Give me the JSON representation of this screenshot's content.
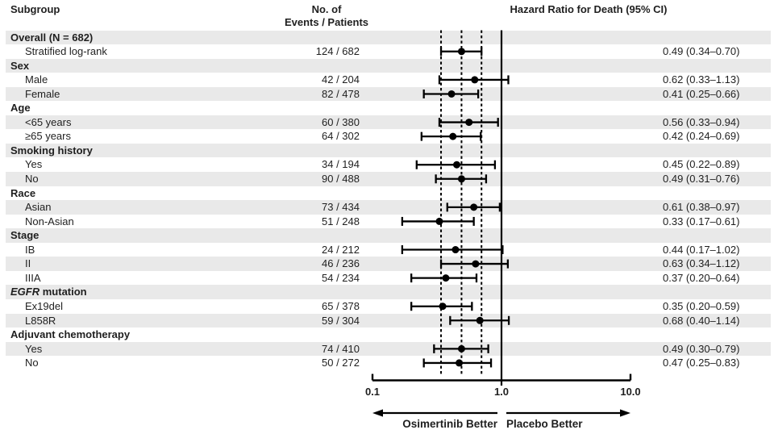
{
  "header": {
    "subgroup": "Subgroup",
    "events_line1": "No. of",
    "events_line2": "Events / Patients",
    "hazard": "Hazard Ratio for Death (95% CI)"
  },
  "axis": {
    "tick_labels": [
      "0.1",
      "1.0",
      "10.0"
    ],
    "tick_values": [
      0.1,
      1.0,
      10.0
    ],
    "left_label": "Osimertinib Better",
    "right_label": "Placebo Better"
  },
  "colors": {
    "stripe": "#e9e9e9",
    "text": "#1f1f1f",
    "line": "#000000"
  },
  "chart_data": {
    "type": "scatter",
    "variant": "forest-plot",
    "title": "Hazard Ratio for Death (95% CI)",
    "x_scale": "log10",
    "x_range": [
      0.1,
      10.0
    ],
    "x_ticks": [
      0.1,
      1.0,
      10.0
    ],
    "x_tick_labels": [
      "0.1",
      "1.0",
      "10.0"
    ],
    "reference_line": 1.0,
    "dashed_guides": [
      0.34,
      0.49,
      0.7
    ],
    "direction_labels": {
      "left": "Osimertinib Better",
      "right": "Placebo Better"
    },
    "columns": {
      "subgroup": "Subgroup",
      "events": "No. of Events / Patients",
      "hazard": "Hazard Ratio for Death (95% CI)"
    },
    "rows": [
      {
        "kind": "group",
        "label": "Overall (N = 682)"
      },
      {
        "kind": "item",
        "label": "Stratified log-rank",
        "events": "124 / 682",
        "hr": 0.49,
        "ci_low": 0.34,
        "ci_high": 0.7,
        "hr_text": "0.49 (0.34–0.70)"
      },
      {
        "kind": "group",
        "label": "Sex"
      },
      {
        "kind": "item",
        "label": "Male",
        "events": "42 / 204",
        "hr": 0.62,
        "ci_low": 0.33,
        "ci_high": 1.13,
        "hr_text": "0.62 (0.33–1.13)"
      },
      {
        "kind": "item",
        "label": "Female",
        "events": "82 / 478",
        "hr": 0.41,
        "ci_low": 0.25,
        "ci_high": 0.66,
        "hr_text": "0.41 (0.25–0.66)"
      },
      {
        "kind": "group",
        "label": "Age"
      },
      {
        "kind": "item",
        "label": "<65 years",
        "events": "60 / 380",
        "hr": 0.56,
        "ci_low": 0.33,
        "ci_high": 0.94,
        "hr_text": "0.56 (0.33–0.94)"
      },
      {
        "kind": "item",
        "label": "≥65 years",
        "events": "64 / 302",
        "hr": 0.42,
        "ci_low": 0.24,
        "ci_high": 0.69,
        "hr_text": "0.42 (0.24–0.69)"
      },
      {
        "kind": "group",
        "label": "Smoking history"
      },
      {
        "kind": "item",
        "label": "Yes",
        "events": "34 / 194",
        "hr": 0.45,
        "ci_low": 0.22,
        "ci_high": 0.89,
        "hr_text": "0.45 (0.22–0.89)"
      },
      {
        "kind": "item",
        "label": "No",
        "events": "90 / 488",
        "hr": 0.49,
        "ci_low": 0.31,
        "ci_high": 0.76,
        "hr_text": "0.49 (0.31–0.76)"
      },
      {
        "kind": "group",
        "label": "Race"
      },
      {
        "kind": "item",
        "label": "Asian",
        "events": "73 / 434",
        "hr": 0.61,
        "ci_low": 0.38,
        "ci_high": 0.97,
        "hr_text": "0.61 (0.38–0.97)"
      },
      {
        "kind": "item",
        "label": "Non-Asian",
        "events": "51 / 248",
        "hr": 0.33,
        "ci_low": 0.17,
        "ci_high": 0.61,
        "hr_text": "0.33 (0.17–0.61)"
      },
      {
        "kind": "group",
        "label": "Stage"
      },
      {
        "kind": "item",
        "label": "IB",
        "events": "24 / 212",
        "hr": 0.44,
        "ci_low": 0.17,
        "ci_high": 1.02,
        "hr_text": "0.44 (0.17–1.02)"
      },
      {
        "kind": "item",
        "label": "II",
        "events": "46 / 236",
        "hr": 0.63,
        "ci_low": 0.34,
        "ci_high": 1.12,
        "hr_text": "0.63 (0.34–1.12)"
      },
      {
        "kind": "item",
        "label": "IIIA",
        "events": "54 / 234",
        "hr": 0.37,
        "ci_low": 0.2,
        "ci_high": 0.64,
        "hr_text": "0.37 (0.20–0.64)"
      },
      {
        "kind": "group",
        "label": "EGFR mutation",
        "italic_prefix": "EGFR"
      },
      {
        "kind": "item",
        "label": "Ex19del",
        "events": "65 / 378",
        "hr": 0.35,
        "ci_low": 0.2,
        "ci_high": 0.59,
        "hr_text": "0.35 (0.20–0.59)"
      },
      {
        "kind": "item",
        "label": "L858R",
        "events": "59 / 304",
        "hr": 0.68,
        "ci_low": 0.4,
        "ci_high": 1.14,
        "hr_text": "0.68 (0.40–1.14)"
      },
      {
        "kind": "group",
        "label": "Adjuvant chemotherapy"
      },
      {
        "kind": "item",
        "label": "Yes",
        "events": "74 / 410",
        "hr": 0.49,
        "ci_low": 0.3,
        "ci_high": 0.79,
        "hr_text": "0.49 (0.30–0.79)"
      },
      {
        "kind": "item",
        "label": "No",
        "events": "50 / 272",
        "hr": 0.47,
        "ci_low": 0.25,
        "ci_high": 0.83,
        "hr_text": "0.47 (0.25–0.83)"
      }
    ]
  }
}
